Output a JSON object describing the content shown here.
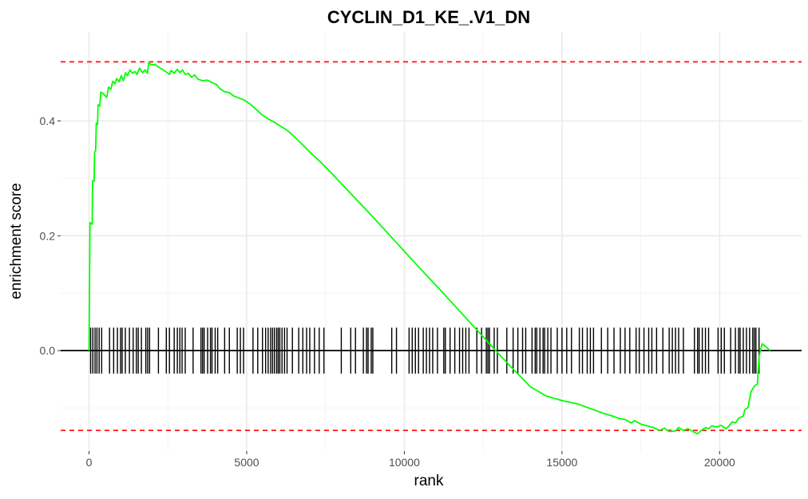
{
  "chart_data": {
    "type": "line",
    "title": "CYCLIN_D1_KE_.V1_DN",
    "xlabel": "rank",
    "ylabel": "enrichment score",
    "xlim": [
      -900,
      22600
    ],
    "ylim": [
      -0.175,
      0.555
    ],
    "x_ticks": [
      0,
      5000,
      10000,
      15000,
      20000
    ],
    "x_tick_labels": [
      "0",
      "5000",
      "10000",
      "15000",
      "20000"
    ],
    "y_ticks": [
      0.0,
      0.2,
      0.4
    ],
    "y_tick_labels": [
      "0.0",
      "0.2",
      "0.4"
    ],
    "grid": true,
    "colors": {
      "curve": "#00ff00",
      "threshold": "#ff0000",
      "gene_ticks": "#000000",
      "zero_line": "#000000",
      "grid": "#ebebeb"
    },
    "threshold_lines": [
      0.503,
      -0.139
    ],
    "zero_line": 0,
    "hit_tick_range": [
      -0.04,
      0.04
    ],
    "series": [
      {
        "values": [
          [
            0,
            0
          ],
          [
            30,
            0.223
          ],
          [
            100,
            0.22
          ],
          [
            110,
            0.296
          ],
          [
            160,
            0.295
          ],
          [
            175,
            0.346
          ],
          [
            210,
            0.348
          ],
          [
            230,
            0.396
          ],
          [
            270,
            0.394
          ],
          [
            285,
            0.428
          ],
          [
            340,
            0.426
          ],
          [
            370,
            0.45
          ],
          [
            420,
            0.449
          ],
          [
            560,
            0.441
          ],
          [
            620,
            0.459
          ],
          [
            690,
            0.455
          ],
          [
            750,
            0.469
          ],
          [
            820,
            0.465
          ],
          [
            880,
            0.474
          ],
          [
            950,
            0.468
          ],
          [
            1020,
            0.479
          ],
          [
            1090,
            0.47
          ],
          [
            1160,
            0.484
          ],
          [
            1220,
            0.479
          ],
          [
            1300,
            0.489
          ],
          [
            1380,
            0.483
          ],
          [
            1450,
            0.486
          ],
          [
            1520,
            0.481
          ],
          [
            1600,
            0.492
          ],
          [
            1700,
            0.484
          ],
          [
            1780,
            0.489
          ],
          [
            1850,
            0.483
          ],
          [
            1900,
            0.503
          ],
          [
            1960,
            0.498
          ],
          [
            2100,
            0.498
          ],
          [
            2200,
            0.494
          ],
          [
            2350,
            0.489
          ],
          [
            2450,
            0.485
          ],
          [
            2550,
            0.481
          ],
          [
            2600,
            0.488
          ],
          [
            2700,
            0.483
          ],
          [
            2800,
            0.49
          ],
          [
            2880,
            0.484
          ],
          [
            2960,
            0.489
          ],
          [
            3050,
            0.481
          ],
          [
            3150,
            0.483
          ],
          [
            3250,
            0.476
          ],
          [
            3350,
            0.48
          ],
          [
            3450,
            0.473
          ],
          [
            3600,
            0.47
          ],
          [
            3750,
            0.471
          ],
          [
            3900,
            0.467
          ],
          [
            4050,
            0.463
          ],
          [
            4150,
            0.456
          ],
          [
            4300,
            0.451
          ],
          [
            4450,
            0.449
          ],
          [
            4600,
            0.443
          ],
          [
            4750,
            0.44
          ],
          [
            4900,
            0.437
          ],
          [
            5100,
            0.43
          ],
          [
            5300,
            0.42
          ],
          [
            5500,
            0.41
          ],
          [
            5700,
            0.403
          ],
          [
            5900,
            0.397
          ],
          [
            6100,
            0.39
          ],
          [
            6300,
            0.383
          ],
          [
            6600,
            0.368
          ],
          [
            7000,
            0.346
          ],
          [
            7500,
            0.32
          ],
          [
            8000,
            0.291
          ],
          [
            8500,
            0.262
          ],
          [
            9000,
            0.233
          ],
          [
            9500,
            0.203
          ],
          [
            10000,
            0.173
          ],
          [
            10500,
            0.143
          ],
          [
            11000,
            0.114
          ],
          [
            11500,
            0.084
          ],
          [
            12000,
            0.054
          ],
          [
            12500,
            0.024
          ],
          [
            13000,
            -0.006
          ],
          [
            13500,
            -0.035
          ],
          [
            14000,
            -0.063
          ],
          [
            14500,
            -0.079
          ],
          [
            15000,
            -0.087
          ],
          [
            15500,
            -0.093
          ],
          [
            15800,
            -0.099
          ],
          [
            16000,
            -0.103
          ],
          [
            16300,
            -0.109
          ],
          [
            16600,
            -0.114
          ],
          [
            16800,
            -0.118
          ],
          [
            17000,
            -0.12
          ],
          [
            17200,
            -0.126
          ],
          [
            17300,
            -0.122
          ],
          [
            17500,
            -0.128
          ],
          [
            17700,
            -0.131
          ],
          [
            17900,
            -0.134
          ],
          [
            18100,
            -0.139
          ],
          [
            18250,
            -0.135
          ],
          [
            18400,
            -0.141
          ],
          [
            18600,
            -0.14
          ],
          [
            18700,
            -0.134
          ],
          [
            18850,
            -0.139
          ],
          [
            19000,
            -0.136
          ],
          [
            19150,
            -0.141
          ],
          [
            19300,
            -0.145
          ],
          [
            19400,
            -0.14
          ],
          [
            19550,
            -0.134
          ],
          [
            19650,
            -0.136
          ],
          [
            19750,
            -0.131
          ],
          [
            19900,
            -0.133
          ],
          [
            20050,
            -0.13
          ],
          [
            20200,
            -0.136
          ],
          [
            20300,
            -0.131
          ],
          [
            20400,
            -0.124
          ],
          [
            20500,
            -0.126
          ],
          [
            20600,
            -0.118
          ],
          [
            20750,
            -0.114
          ],
          [
            20800,
            -0.103
          ],
          [
            20900,
            -0.099
          ],
          [
            20950,
            -0.085
          ],
          [
            21000,
            -0.071
          ],
          [
            21100,
            -0.062
          ],
          [
            21200,
            -0.058
          ],
          [
            21250,
            -0.01
          ],
          [
            21350,
            0.012
          ],
          [
            21500,
            0.005
          ],
          [
            21600,
            0
          ]
        ]
      }
    ],
    "hits": [
      50,
      120,
      190,
      250,
      320,
      400,
      650,
      780,
      900,
      1000,
      1050,
      1150,
      1280,
      1400,
      1500,
      1560,
      1660,
      1800,
      1860,
      1920,
      2200,
      2450,
      2550,
      2700,
      2800,
      2880,
      2950,
      3050,
      3300,
      3550,
      3600,
      3650,
      3760,
      3850,
      3900,
      4000,
      4080,
      4300,
      4450,
      4700,
      4800,
      4900,
      5200,
      5350,
      5500,
      5600,
      5680,
      5760,
      5820,
      5880,
      5950,
      6000,
      6050,
      6120,
      6200,
      6280,
      6450,
      6650,
      6780,
      6900,
      7000,
      7150,
      7300,
      7450,
      8000,
      8300,
      8450,
      8700,
      8800,
      8850,
      8950,
      9000,
      9600,
      9750,
      10150,
      10250,
      10350,
      10450,
      10600,
      10700,
      10800,
      10900,
      11050,
      11250,
      11300,
      11450,
      11600,
      11750,
      11850,
      11950,
      12050,
      12300,
      12450,
      12600,
      12650,
      12700,
      12850,
      12950,
      13250,
      13450,
      13600,
      13750,
      13850,
      14050,
      14150,
      14200,
      14300,
      14400,
      14450,
      14550,
      14650,
      14850,
      15000,
      15150,
      15300,
      15550,
      15650,
      15800,
      15900,
      16000,
      16250,
      16450,
      16650,
      16850,
      17000,
      17150,
      17350,
      17450,
      17600,
      17750,
      17850,
      18000,
      18200,
      18400,
      18500,
      18600,
      18700,
      18850,
      19200,
      19300,
      19350,
      19450,
      19550,
      19650,
      19950,
      20050,
      20150,
      20350,
      20500,
      20600,
      20650,
      20750,
      20850,
      20950,
      21050,
      21100,
      21150,
      21250
    ]
  }
}
